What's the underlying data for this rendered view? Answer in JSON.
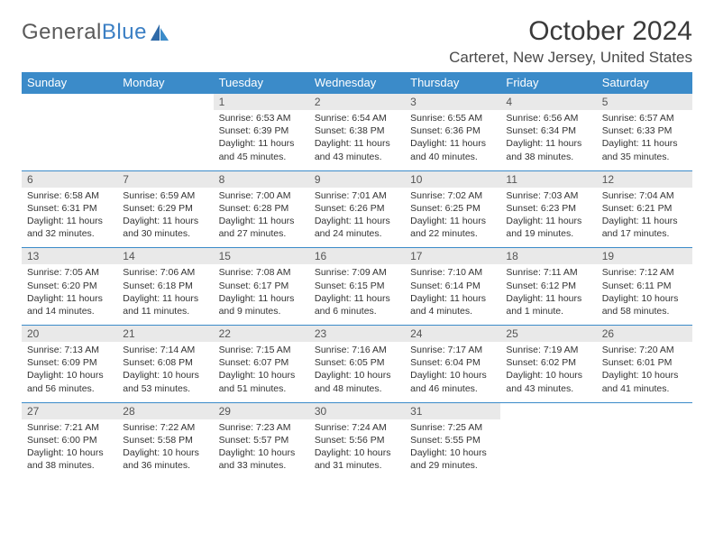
{
  "logo": {
    "text1": "General",
    "text2": "Blue",
    "text_color": "#5a5a5a",
    "accent_color": "#3b7fc4"
  },
  "title": "October 2024",
  "location": "Carteret, New Jersey, United States",
  "colors": {
    "header_bg": "#3b8bc9",
    "header_text": "#ffffff",
    "daynum_bg": "#e9e9e9",
    "daynum_text": "#555555",
    "border": "#3b8bc9",
    "body_text": "#333333",
    "background": "#ffffff"
  },
  "day_headers": [
    "Sunday",
    "Monday",
    "Tuesday",
    "Wednesday",
    "Thursday",
    "Friday",
    "Saturday"
  ],
  "weeks": [
    [
      null,
      null,
      {
        "n": "1",
        "sunrise": "Sunrise: 6:53 AM",
        "sunset": "Sunset: 6:39 PM",
        "day1": "Daylight: 11 hours",
        "day2": "and 45 minutes."
      },
      {
        "n": "2",
        "sunrise": "Sunrise: 6:54 AM",
        "sunset": "Sunset: 6:38 PM",
        "day1": "Daylight: 11 hours",
        "day2": "and 43 minutes."
      },
      {
        "n": "3",
        "sunrise": "Sunrise: 6:55 AM",
        "sunset": "Sunset: 6:36 PM",
        "day1": "Daylight: 11 hours",
        "day2": "and 40 minutes."
      },
      {
        "n": "4",
        "sunrise": "Sunrise: 6:56 AM",
        "sunset": "Sunset: 6:34 PM",
        "day1": "Daylight: 11 hours",
        "day2": "and 38 minutes."
      },
      {
        "n": "5",
        "sunrise": "Sunrise: 6:57 AM",
        "sunset": "Sunset: 6:33 PM",
        "day1": "Daylight: 11 hours",
        "day2": "and 35 minutes."
      }
    ],
    [
      {
        "n": "6",
        "sunrise": "Sunrise: 6:58 AM",
        "sunset": "Sunset: 6:31 PM",
        "day1": "Daylight: 11 hours",
        "day2": "and 32 minutes."
      },
      {
        "n": "7",
        "sunrise": "Sunrise: 6:59 AM",
        "sunset": "Sunset: 6:29 PM",
        "day1": "Daylight: 11 hours",
        "day2": "and 30 minutes."
      },
      {
        "n": "8",
        "sunrise": "Sunrise: 7:00 AM",
        "sunset": "Sunset: 6:28 PM",
        "day1": "Daylight: 11 hours",
        "day2": "and 27 minutes."
      },
      {
        "n": "9",
        "sunrise": "Sunrise: 7:01 AM",
        "sunset": "Sunset: 6:26 PM",
        "day1": "Daylight: 11 hours",
        "day2": "and 24 minutes."
      },
      {
        "n": "10",
        "sunrise": "Sunrise: 7:02 AM",
        "sunset": "Sunset: 6:25 PM",
        "day1": "Daylight: 11 hours",
        "day2": "and 22 minutes."
      },
      {
        "n": "11",
        "sunrise": "Sunrise: 7:03 AM",
        "sunset": "Sunset: 6:23 PM",
        "day1": "Daylight: 11 hours",
        "day2": "and 19 minutes."
      },
      {
        "n": "12",
        "sunrise": "Sunrise: 7:04 AM",
        "sunset": "Sunset: 6:21 PM",
        "day1": "Daylight: 11 hours",
        "day2": "and 17 minutes."
      }
    ],
    [
      {
        "n": "13",
        "sunrise": "Sunrise: 7:05 AM",
        "sunset": "Sunset: 6:20 PM",
        "day1": "Daylight: 11 hours",
        "day2": "and 14 minutes."
      },
      {
        "n": "14",
        "sunrise": "Sunrise: 7:06 AM",
        "sunset": "Sunset: 6:18 PM",
        "day1": "Daylight: 11 hours",
        "day2": "and 11 minutes."
      },
      {
        "n": "15",
        "sunrise": "Sunrise: 7:08 AM",
        "sunset": "Sunset: 6:17 PM",
        "day1": "Daylight: 11 hours",
        "day2": "and 9 minutes."
      },
      {
        "n": "16",
        "sunrise": "Sunrise: 7:09 AM",
        "sunset": "Sunset: 6:15 PM",
        "day1": "Daylight: 11 hours",
        "day2": "and 6 minutes."
      },
      {
        "n": "17",
        "sunrise": "Sunrise: 7:10 AM",
        "sunset": "Sunset: 6:14 PM",
        "day1": "Daylight: 11 hours",
        "day2": "and 4 minutes."
      },
      {
        "n": "18",
        "sunrise": "Sunrise: 7:11 AM",
        "sunset": "Sunset: 6:12 PM",
        "day1": "Daylight: 11 hours",
        "day2": "and 1 minute."
      },
      {
        "n": "19",
        "sunrise": "Sunrise: 7:12 AM",
        "sunset": "Sunset: 6:11 PM",
        "day1": "Daylight: 10 hours",
        "day2": "and 58 minutes."
      }
    ],
    [
      {
        "n": "20",
        "sunrise": "Sunrise: 7:13 AM",
        "sunset": "Sunset: 6:09 PM",
        "day1": "Daylight: 10 hours",
        "day2": "and 56 minutes."
      },
      {
        "n": "21",
        "sunrise": "Sunrise: 7:14 AM",
        "sunset": "Sunset: 6:08 PM",
        "day1": "Daylight: 10 hours",
        "day2": "and 53 minutes."
      },
      {
        "n": "22",
        "sunrise": "Sunrise: 7:15 AM",
        "sunset": "Sunset: 6:07 PM",
        "day1": "Daylight: 10 hours",
        "day2": "and 51 minutes."
      },
      {
        "n": "23",
        "sunrise": "Sunrise: 7:16 AM",
        "sunset": "Sunset: 6:05 PM",
        "day1": "Daylight: 10 hours",
        "day2": "and 48 minutes."
      },
      {
        "n": "24",
        "sunrise": "Sunrise: 7:17 AM",
        "sunset": "Sunset: 6:04 PM",
        "day1": "Daylight: 10 hours",
        "day2": "and 46 minutes."
      },
      {
        "n": "25",
        "sunrise": "Sunrise: 7:19 AM",
        "sunset": "Sunset: 6:02 PM",
        "day1": "Daylight: 10 hours",
        "day2": "and 43 minutes."
      },
      {
        "n": "26",
        "sunrise": "Sunrise: 7:20 AM",
        "sunset": "Sunset: 6:01 PM",
        "day1": "Daylight: 10 hours",
        "day2": "and 41 minutes."
      }
    ],
    [
      {
        "n": "27",
        "sunrise": "Sunrise: 7:21 AM",
        "sunset": "Sunset: 6:00 PM",
        "day1": "Daylight: 10 hours",
        "day2": "and 38 minutes."
      },
      {
        "n": "28",
        "sunrise": "Sunrise: 7:22 AM",
        "sunset": "Sunset: 5:58 PM",
        "day1": "Daylight: 10 hours",
        "day2": "and 36 minutes."
      },
      {
        "n": "29",
        "sunrise": "Sunrise: 7:23 AM",
        "sunset": "Sunset: 5:57 PM",
        "day1": "Daylight: 10 hours",
        "day2": "and 33 minutes."
      },
      {
        "n": "30",
        "sunrise": "Sunrise: 7:24 AM",
        "sunset": "Sunset: 5:56 PM",
        "day1": "Daylight: 10 hours",
        "day2": "and 31 minutes."
      },
      {
        "n": "31",
        "sunrise": "Sunrise: 7:25 AM",
        "sunset": "Sunset: 5:55 PM",
        "day1": "Daylight: 10 hours",
        "day2": "and 29 minutes."
      },
      null,
      null
    ]
  ]
}
